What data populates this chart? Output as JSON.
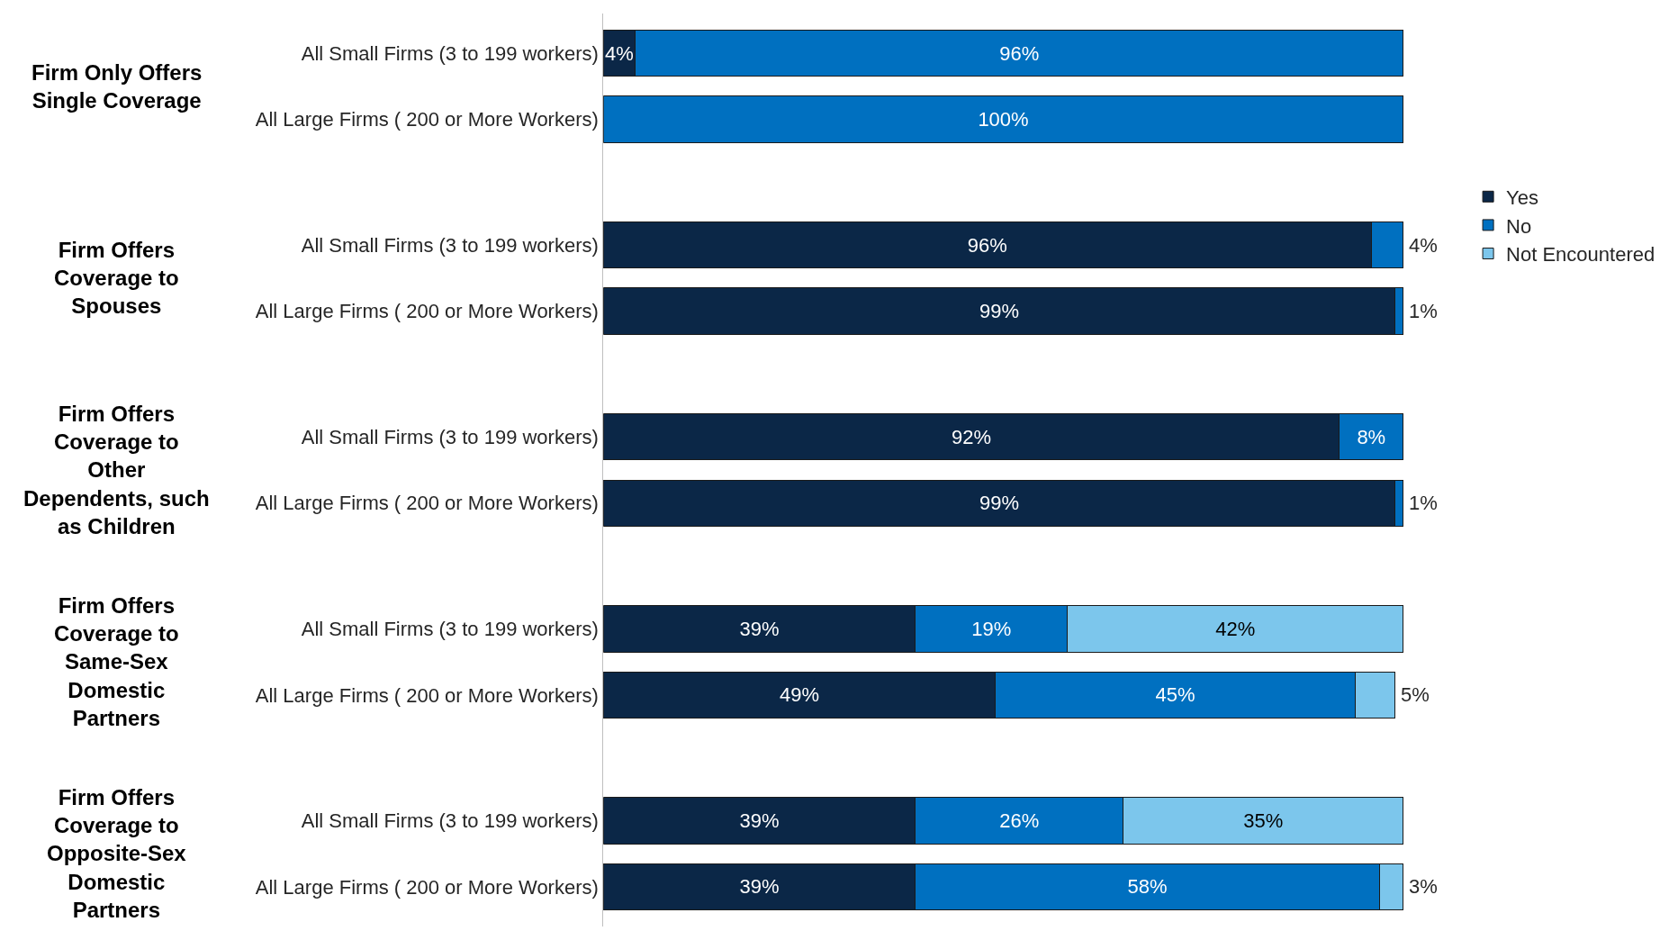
{
  "chart_data": {
    "type": "bar",
    "orientation": "horizontal",
    "stacked": true,
    "legend": "right",
    "categories": [
      "All Small Firms (3 to 199 workers)",
      "All Large Firms ( 200 or More Workers)",
      "All Small Firms (3 to 199 workers)",
      "All Large Firms ( 200 or More Workers)",
      "All Small Firms (3 to 199 workers)",
      "All Large Firms ( 200 or More Workers)",
      "All Small Firms (3 to 199 workers)",
      "All Large Firms ( 200 or More Workers)",
      "All Small Firms (3 to 199 workers)",
      "All Large Firms ( 200 or More Workers)"
    ],
    "annotations": [
      "Firm Only Offers Single Coverage",
      "Firm Offers Coverage to Spouses",
      "Firm Offers Coverage to Other Dependents, such as Children",
      "Firm Offers Coverage to Same-Sex Domestic Partners",
      "Firm Offers Coverage to Opposite-Sex Domestic Partners"
    ],
    "series": [
      {
        "name": "Yes",
        "color": "#0b2747",
        "values": [
          4,
          null,
          96,
          99,
          92,
          99,
          39,
          49,
          39,
          39
        ],
        "value_labels": [
          "4%",
          null,
          "96%",
          "99%",
          "92%",
          "99%",
          "39%",
          "49%",
          "39%",
          "39%"
        ]
      },
      {
        "name": "No",
        "color": "#0070c0",
        "values": [
          96,
          100,
          4,
          1,
          8,
          1,
          19,
          45,
          26,
          58
        ],
        "value_labels": [
          "96%",
          "100%",
          "4%",
          "1%",
          "8%",
          "1%",
          "19%",
          "45%",
          "26%",
          "58%"
        ]
      },
      {
        "name": "Not Encountered",
        "color": "#7cc6ec",
        "values": [
          null,
          null,
          null,
          null,
          null,
          null,
          42,
          5,
          35,
          3
        ],
        "value_labels": [
          null,
          null,
          null,
          null,
          null,
          null,
          "42%",
          "5%",
          "35%",
          "3%"
        ]
      }
    ]
  }
}
